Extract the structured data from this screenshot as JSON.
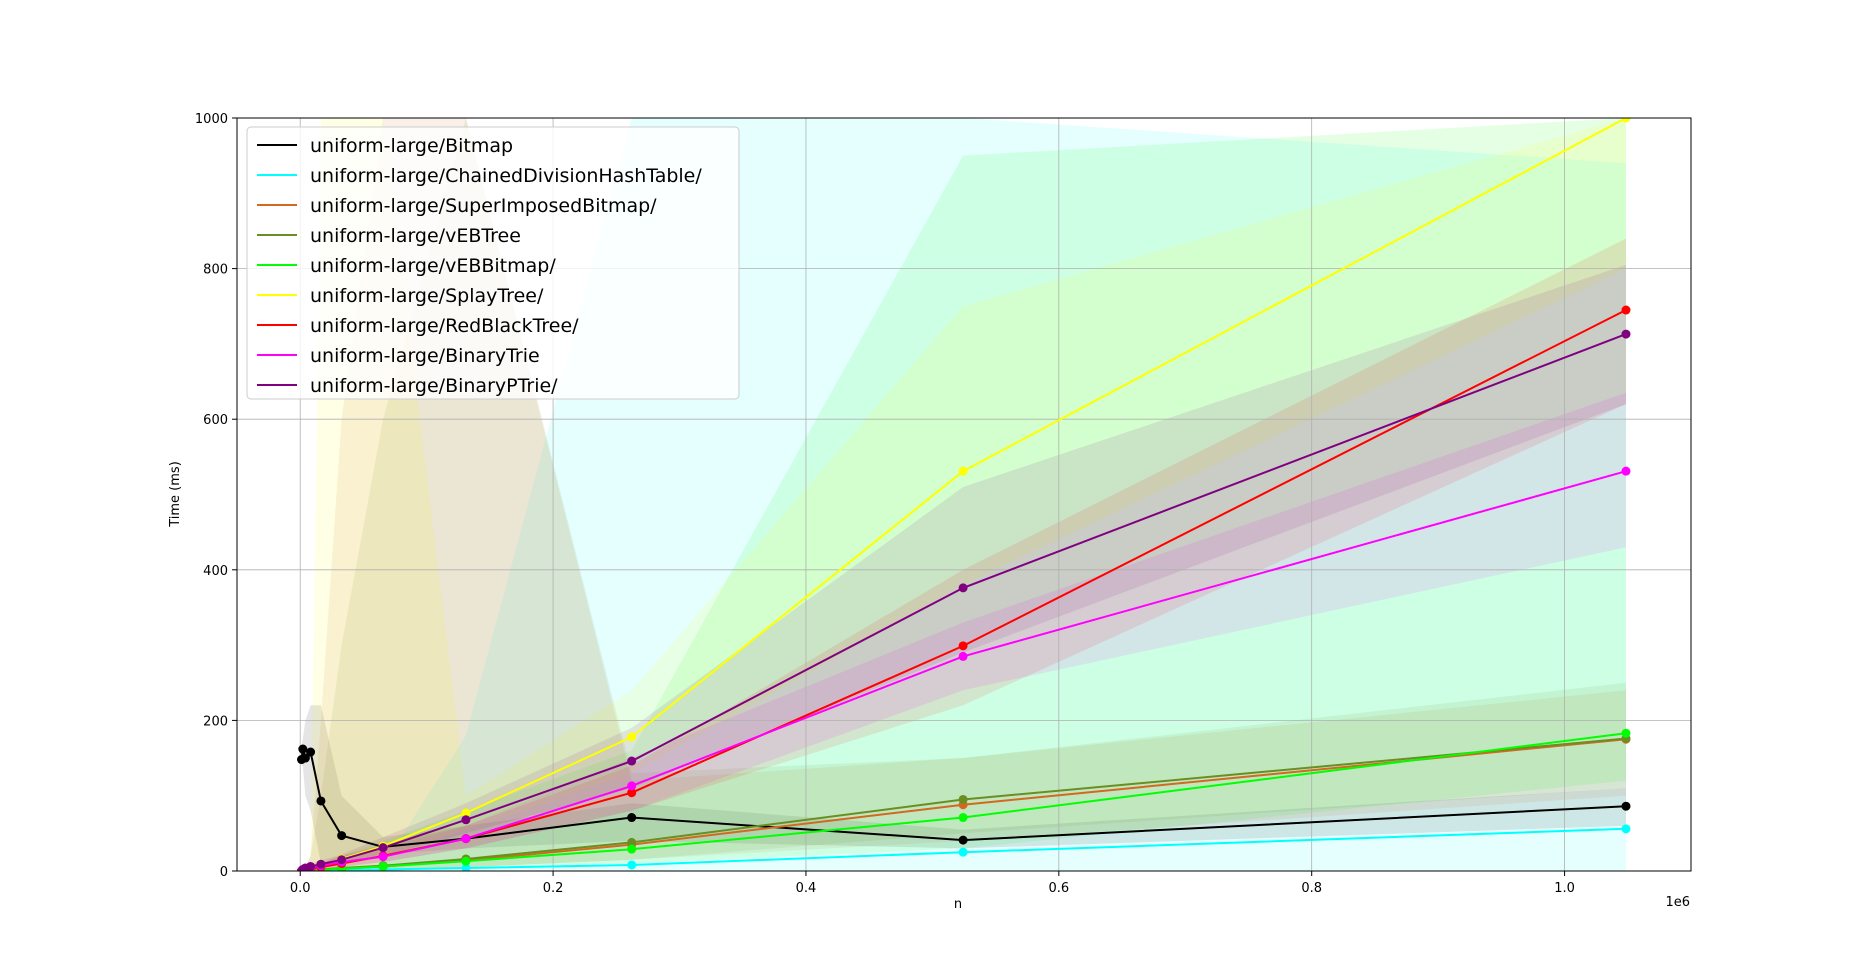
{
  "chart_data": {
    "type": "line",
    "title": "",
    "xlabel": "n",
    "ylabel": "Time (ms)",
    "x_offset_label": "1e6",
    "xlim": [
      -0.05,
      1.1
    ],
    "ylim": [
      0,
      1000
    ],
    "xticks": [
      0.0,
      0.2,
      0.4,
      0.6,
      0.8,
      1.0
    ],
    "xtick_labels": [
      "0.0",
      "0.2",
      "0.4",
      "0.6",
      "0.8",
      "1.0"
    ],
    "yticks": [
      0,
      200,
      400,
      600,
      800,
      1000
    ],
    "ytick_labels": [
      "0",
      "200",
      "400",
      "600",
      "800",
      "1000"
    ],
    "grid": true,
    "legend_position": "top-left",
    "x": [
      0.001024,
      0.002048,
      0.004096,
      0.008192,
      0.016384,
      0.032768,
      0.065536,
      0.131072,
      0.262144,
      0.524288,
      1.048576
    ],
    "series": [
      {
        "name": "uniform-large/Bitmap",
        "color": "#000000",
        "values": [
          148,
          162,
          150,
          158,
          93,
          47,
          32,
          43,
          71,
          41,
          86
        ],
        "band_lower": [
          140,
          140,
          100,
          80,
          10,
          10,
          22,
          30,
          40,
          30,
          60
        ],
        "band_upper": [
          165,
          175,
          200,
          220,
          220,
          100,
          45,
          60,
          90,
          55,
          110
        ]
      },
      {
        "name": "uniform-large/ChainedDivisionHashTable/",
        "color": "#00ffff",
        "values": [
          0,
          0,
          0,
          0,
          0,
          1,
          2,
          4,
          8,
          25,
          56
        ],
        "band_lower": [
          0,
          0,
          0,
          0,
          0,
          0,
          0,
          0,
          0,
          0,
          0
        ],
        "band_upper": [
          0,
          0,
          0,
          0,
          1,
          3,
          8,
          180,
          1000,
          1000,
          940
        ]
      },
      {
        "name": "uniform-large/SuperImposedBitmap/",
        "color": "#d2691e",
        "values": [
          0,
          0,
          1,
          1,
          2,
          3,
          6,
          14,
          35,
          88,
          175
        ],
        "band_lower": [
          0,
          0,
          0,
          0,
          0,
          0,
          0,
          5,
          15,
          40,
          100
        ],
        "band_upper": [
          0,
          0,
          5,
          20,
          200,
          600,
          1000,
          1000,
          120,
          150,
          240
        ]
      },
      {
        "name": "uniform-large/vEBTree",
        "color": "#6b8e23",
        "values": [
          0,
          0,
          1,
          1,
          2,
          4,
          7,
          16,
          38,
          95,
          176
        ],
        "band_lower": [
          0,
          0,
          0,
          0,
          0,
          0,
          0,
          5,
          15,
          50,
          110
        ],
        "band_upper": [
          0,
          0,
          5,
          20,
          100,
          300,
          600,
          1000,
          130,
          150,
          250
        ]
      },
      {
        "name": "uniform-large/vEBBitmap/",
        "color": "#00ff00",
        "values": [
          0,
          0,
          0,
          1,
          2,
          3,
          6,
          13,
          29,
          71,
          183
        ],
        "band_lower": [
          0,
          0,
          0,
          0,
          0,
          0,
          0,
          5,
          10,
          30,
          120
        ],
        "band_upper": [
          0,
          0,
          2,
          5,
          10,
          20,
          40,
          80,
          160,
          950,
          1000
        ]
      },
      {
        "name": "uniform-large/SplayTree/",
        "color": "#ffff00",
        "values": [
          0,
          1,
          2,
          4,
          8,
          16,
          33,
          77,
          178,
          531,
          1080
        ],
        "band_lower": [
          0,
          0,
          0,
          0,
          2,
          8,
          20,
          55,
          130,
          380,
          800
        ],
        "band_upper": [
          0,
          2,
          5,
          10,
          1000,
          1000,
          1000,
          100,
          240,
          750,
          1000
        ]
      },
      {
        "name": "uniform-large/RedBlackTree/",
        "color": "#ff0000",
        "values": [
          0,
          0,
          1,
          2,
          5,
          10,
          20,
          43,
          104,
          299,
          745
        ],
        "band_lower": [
          0,
          0,
          0,
          0,
          2,
          5,
          12,
          30,
          80,
          220,
          620
        ],
        "band_upper": [
          0,
          1,
          3,
          5,
          10,
          20,
          35,
          60,
          140,
          400,
          840
        ]
      },
      {
        "name": "uniform-large/BinaryTrie",
        "color": "#ff00ff",
        "values": [
          0,
          1,
          2,
          4,
          7,
          12,
          19,
          43,
          113,
          285,
          531
        ],
        "band_lower": [
          0,
          0,
          0,
          1,
          3,
          6,
          12,
          30,
          80,
          240,
          430
        ],
        "band_upper": [
          0,
          2,
          5,
          8,
          12,
          20,
          30,
          60,
          150,
          330,
          635
        ]
      },
      {
        "name": "uniform-large/BinaryPTrie/",
        "color": "#800080",
        "values": [
          0,
          2,
          4,
          6,
          9,
          15,
          31,
          68,
          146,
          376,
          713
        ],
        "band_lower": [
          0,
          0,
          1,
          3,
          5,
          10,
          20,
          50,
          110,
          290,
          620
        ],
        "band_upper": [
          0,
          3,
          7,
          10,
          14,
          22,
          45,
          90,
          190,
          510,
          805
        ]
      }
    ]
  }
}
